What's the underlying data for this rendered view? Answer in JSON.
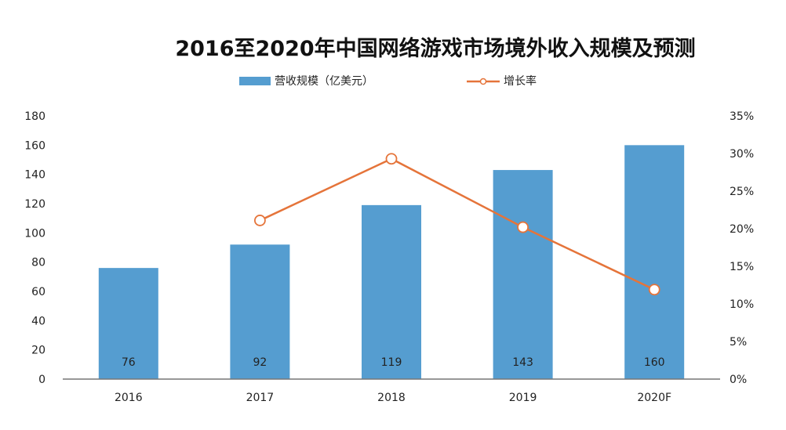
{
  "chart_data": {
    "type": "bar",
    "title": "2016至2020年中国网络游戏市场境外收入规模及预测",
    "categories": [
      "2016",
      "2017",
      "2018",
      "2019",
      "2020F"
    ],
    "series": [
      {
        "name": "营收规模（亿美元）",
        "type": "bar",
        "axis": "left",
        "color": "#559DD0",
        "values": [
          76,
          92,
          119,
          143,
          160
        ],
        "labels": [
          "76",
          "92",
          "119",
          "143",
          "160"
        ]
      },
      {
        "name": "增长率",
        "type": "line",
        "axis": "right",
        "color": "#E5743A",
        "values": [
          null,
          21.1,
          29.3,
          20.2,
          11.9
        ]
      }
    ],
    "left_axis": {
      "min": 0,
      "max": 180,
      "step": 20,
      "ticks": [
        "0",
        "20",
        "40",
        "60",
        "80",
        "100",
        "120",
        "140",
        "160",
        "180"
      ]
    },
    "right_axis": {
      "min": 0,
      "max": 35,
      "step": 5,
      "ticks": [
        "0%",
        "5%",
        "10%",
        "15%",
        "20%",
        "25%",
        "30%",
        "35%"
      ]
    },
    "grid": false,
    "legend_position": "top-center"
  }
}
